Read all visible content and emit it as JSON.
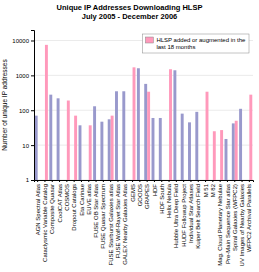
{
  "chart_data": {
    "type": "bar",
    "title": "Unique IP Addresses Downloading HLSP\nJuly 2005 - December 2006",
    "y_label": "Number of unique IP addresses",
    "categories": [
      "AGN Spectral Atlas",
      "Cataclysmic Variable Catalog",
      "Composite Quasar",
      "CoolCAT Atlas",
      "COSMOS",
      "Dropout Catalogs",
      "Eta Carinae",
      "EUVE atlas",
      "FUSE OB Star Atlas",
      "FUSE Quasar Spectrum",
      "FUSE Starburst Galaxies atlas",
      "FUSE Wolf-Rayet Star Atlas",
      "GALEX Nearby Galaxies Atlas",
      "GEMS",
      "GOODS",
      "GRAPES",
      "HDF",
      "HDF South",
      "Helix Nebula",
      "Hubble Ultra Deep Field",
      "HUDF Followup Project",
      "Individual Star Atlases",
      "Kuiper Belt Search Field",
      "M 51",
      "M 82",
      "Mag. Cloud Planetary Nebulae",
      "Pre-Main Sequence Star atlas",
      "Spiral Galaxies (WFPC2)",
      "UV Images of Nearby Galaxies",
      "WFPC2 Archival Parallels"
    ],
    "series": [
      {
        "color": "#9999CC",
        "values": [
          70,
          null,
          280,
          220,
          null,
          null,
          37,
          null,
          130,
          47,
          55,
          350,
          350,
          null,
          1600,
          570,
          60,
          60,
          null,
          1400,
          80,
          45,
          90,
          null,
          null,
          null,
          15,
          42,
          110,
          null
        ]
      },
      {
        "name": "HLSP added or augmented in the\nlast 18 months",
        "color": "#FF99BB",
        "values": [
          null,
          7500,
          null,
          null,
          190,
          70,
          null,
          37,
          null,
          null,
          70,
          null,
          null,
          1700,
          null,
          340,
          null,
          null,
          1500,
          null,
          null,
          null,
          null,
          340,
          25,
          27,
          null,
          50,
          null,
          280
        ]
      }
    ],
    "log": "y",
    "ylim": [
      1,
      20000
    ],
    "yticks": [
      1,
      10,
      100,
      1000,
      10000
    ],
    "grid": true,
    "legend": "top-right"
  }
}
